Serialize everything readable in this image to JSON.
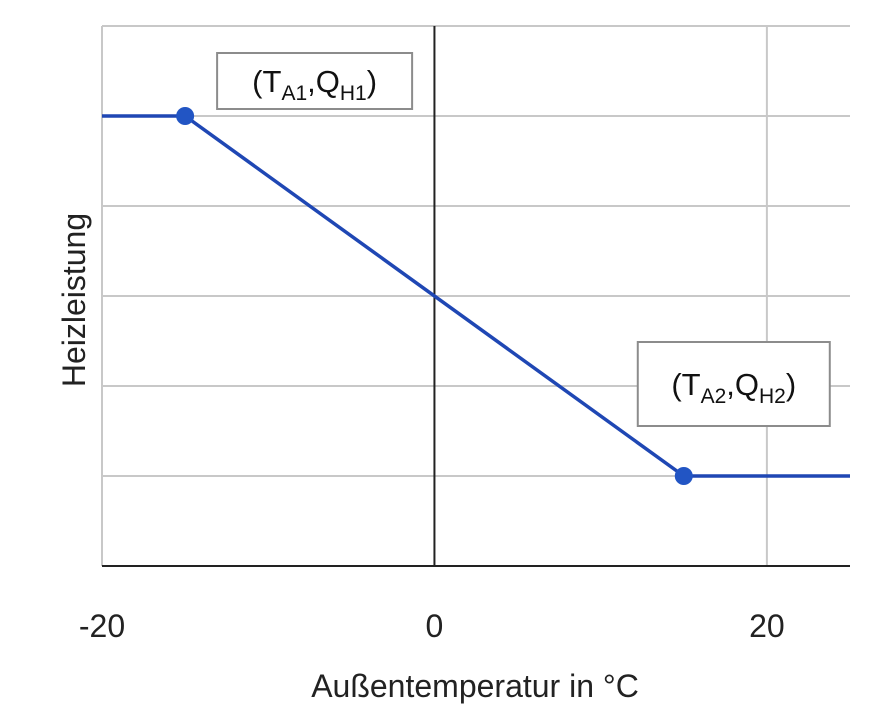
{
  "chart_data": {
    "type": "line",
    "title": "",
    "xlabel": "Außentemperatur in °C",
    "ylabel": "Heizleistung",
    "xlim": [
      -20,
      25
    ],
    "ylim": [
      0,
      6
    ],
    "x_ticks": [
      {
        "value": -20,
        "label": "-20"
      },
      {
        "value": 0,
        "label": "0"
      },
      {
        "value": 20,
        "label": "20"
      }
    ],
    "x_gridlines": [
      -20,
      0,
      20
    ],
    "y_gridlines": [
      1,
      2,
      3,
      4,
      5,
      6
    ],
    "grid": true,
    "series": [
      {
        "x": [
          -20,
          -15,
          15,
          25
        ],
        "y": [
          5,
          5,
          1,
          1
        ],
        "color": "#1f47b4"
      }
    ],
    "points": [
      {
        "x": -15,
        "y": 5,
        "color": "#2255c4"
      },
      {
        "x": 15,
        "y": 1,
        "color": "#2255c4"
      }
    ],
    "annotations": [
      {
        "point": 0,
        "text": "(T",
        "sub1": "A1",
        "comma": ",Q",
        "sub2": "H1",
        "close": ")"
      },
      {
        "point": 1,
        "text": "(T",
        "sub1": "A2",
        "comma": ",Q",
        "sub2": "H2",
        "close": ")"
      }
    ],
    "colors": {
      "line": "#1f47b4",
      "marker": "#2255c4",
      "grid": "#c8c8c8",
      "axis": "#222222",
      "zero_line": "#222222"
    }
  }
}
